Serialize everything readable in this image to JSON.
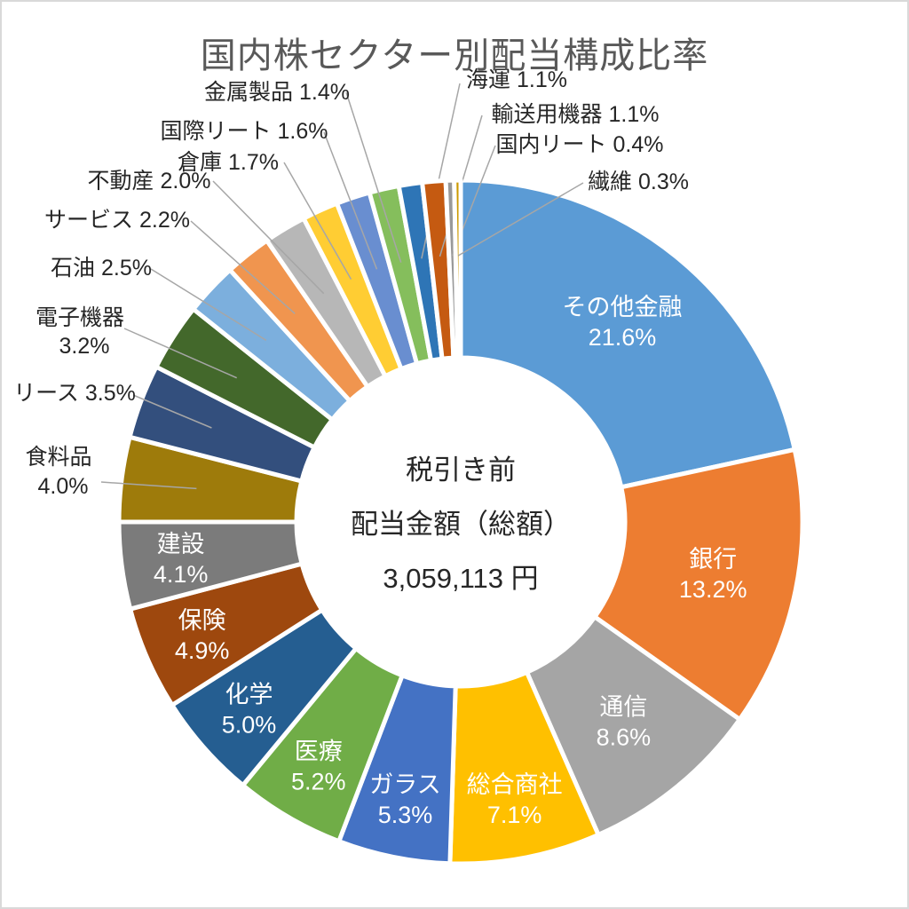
{
  "page": {
    "background": "#FFFFFF",
    "border_color": "#D9D9D9"
  },
  "chart_data": {
    "type": "pie",
    "donut": true,
    "hole_ratio": 0.48,
    "start_angle_deg": 0,
    "direction": "clockwise",
    "grid": false,
    "legend": "none",
    "title": "国内株セクター別配当構成比率",
    "title_color": "#595959",
    "center_label": {
      "lines": [
        "税引き前",
        "配当金額（総額）",
        "3,059,113 円"
      ]
    },
    "value_unit": "%",
    "label_format": "{label} {value}%",
    "inside_label_color": "#FFFFFF",
    "outside_label_color": "#262626",
    "leader_line_color": "#A6A6A6",
    "slices": [
      {
        "label": "その他金融",
        "value": 21.6,
        "color": "#5B9BD5",
        "label_inside": true
      },
      {
        "label": "銀行",
        "value": 13.2,
        "color": "#ED7D31",
        "label_inside": true
      },
      {
        "label": "通信",
        "value": 8.6,
        "color": "#A5A5A5",
        "label_inside": true
      },
      {
        "label": "総合商社",
        "value": 7.1,
        "color": "#FFC000",
        "label_inside": true
      },
      {
        "label": "ガラス",
        "value": 5.3,
        "color": "#4472C4",
        "label_inside": true
      },
      {
        "label": "医療",
        "value": 5.2,
        "color": "#70AD47",
        "label_inside": true
      },
      {
        "label": "化学",
        "value": 5.0,
        "color": "#255E91",
        "label_inside": true
      },
      {
        "label": "保険",
        "value": 4.9,
        "color": "#9E480E",
        "label_inside": true
      },
      {
        "label": "建設",
        "value": 4.1,
        "color": "#7B7B7B",
        "label_inside": true
      },
      {
        "label": "食料品",
        "value": 4.0,
        "color": "#9E7B0B",
        "label_inside": false
      },
      {
        "label": "リース",
        "value": 3.5,
        "color": "#334F7D",
        "label_inside": false
      },
      {
        "label": "電子機器",
        "value": 3.2,
        "color": "#43682B",
        "label_inside": false
      },
      {
        "label": "石油",
        "value": 2.5,
        "color": "#7CAFDD",
        "label_inside": false
      },
      {
        "label": "サービス",
        "value": 2.2,
        "color": "#F0954F",
        "label_inside": false
      },
      {
        "label": "不動産",
        "value": 2.0,
        "color": "#B7B7B7",
        "label_inside": false
      },
      {
        "label": "倉庫",
        "value": 1.7,
        "color": "#FFCD33",
        "label_inside": false
      },
      {
        "label": "国際リート",
        "value": 1.6,
        "color": "#698ED0",
        "label_inside": false
      },
      {
        "label": "金属製品",
        "value": 1.4,
        "color": "#85BE5C",
        "label_inside": false
      },
      {
        "label": "海運",
        "value": 1.1,
        "color": "#2E75B6",
        "label_inside": false
      },
      {
        "label": "輸送用機器",
        "value": 1.1,
        "color": "#C55A11",
        "label_inside": false
      },
      {
        "label": "国内リート",
        "value": 0.4,
        "color": "#999999",
        "label_inside": false
      },
      {
        "label": "繊維",
        "value": 0.3,
        "color": "#CC9A00",
        "label_inside": false
      }
    ]
  }
}
